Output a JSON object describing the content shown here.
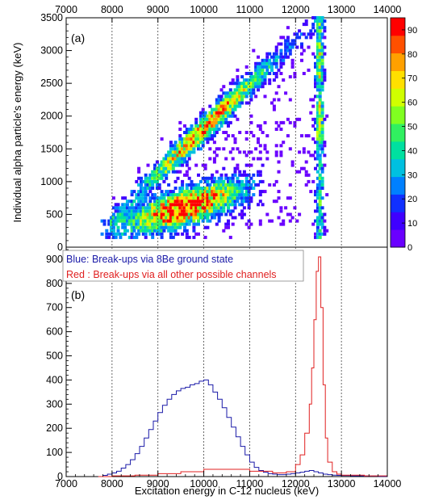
{
  "chart_data": [
    {
      "type": "heatmap",
      "panel_label": "(a)",
      "xlabel": "",
      "ylabel": "Individual alpha particle's energy (keV)",
      "xlim": [
        7000,
        14000
      ],
      "ylim": [
        0,
        3500
      ],
      "x_ticks": [
        "7000",
        "8000",
        "9000",
        "10000",
        "11000",
        "12000",
        "13000",
        "14000"
      ],
      "y_ticks": [
        "0",
        "500",
        "1000",
        "1500",
        "2000",
        "2500",
        "3000",
        "3500"
      ],
      "x_tick_position": "top",
      "gridlines_x": [
        8000,
        9000,
        10000,
        11000,
        12000,
        13000
      ],
      "colorbar": {
        "min": 0,
        "max": 95,
        "ticks": [
          "0",
          "10",
          "20",
          "30",
          "40",
          "50",
          "60",
          "70",
          "80",
          "90"
        ],
        "colors": [
          "#6a00ff",
          "#3f00ff",
          "#1030ff",
          "#0080ff",
          "#00c0e0",
          "#00e0a0",
          "#30f060",
          "#80ff20",
          "#d0ff00",
          "#ffe000",
          "#ffa000",
          "#ff5000",
          "#ff0000"
        ]
      },
      "features": [
        {
          "name": "diagonal band",
          "from": [
            8000,
            450
          ],
          "to": [
            12500,
            3500
          ]
        },
        {
          "name": "lower band",
          "from": [
            7700,
            200
          ],
          "to": [
            11300,
            950
          ]
        },
        {
          "name": "vertical band",
          "x": 12500,
          "y_range": [
            150,
            3500
          ]
        }
      ]
    },
    {
      "type": "line",
      "panel_label": "(b)",
      "xlabel": "Excitation energy in C-12 nucleus (keV)",
      "ylabel": "",
      "xlim": [
        7000,
        14000
      ],
      "ylim": [
        0,
        950
      ],
      "x_ticks": [
        "7000",
        "8000",
        "9000",
        "10000",
        "11000",
        "12000",
        "13000",
        "14000"
      ],
      "y_ticks": [
        "0",
        "100",
        "200",
        "300",
        "400",
        "500",
        "600",
        "700",
        "800",
        "900"
      ],
      "gridlines_x": [
        8000,
        9000,
        10000,
        11000,
        12000,
        13000
      ],
      "legend": [
        {
          "text": "Blue: Break-ups via 8Be ground state",
          "color": "#1a1aa8"
        },
        {
          "text": "Red : Break-ups via all other possible channels",
          "color": "#e02020"
        }
      ],
      "series": [
        {
          "color": "#1a1aa8",
          "x": [
            7700,
            7800,
            7900,
            8000,
            8100,
            8200,
            8300,
            8400,
            8500,
            8600,
            8700,
            8800,
            8900,
            9000,
            9100,
            9200,
            9300,
            9400,
            9500,
            9600,
            9700,
            9800,
            9900,
            10000,
            10100,
            10200,
            10300,
            10400,
            10500,
            10600,
            10700,
            10800,
            10900,
            11000,
            11100,
            11200,
            11300,
            11400,
            11500,
            11600,
            11700,
            11800,
            11900,
            12000,
            12100,
            12200,
            12300,
            12400,
            12500,
            12600,
            12700,
            12800,
            12900,
            13000,
            13100,
            13200,
            13300,
            13400,
            13500,
            13600,
            13700,
            13800,
            13900,
            14000
          ],
          "values": [
            0,
            5,
            10,
            15,
            22,
            35,
            50,
            70,
            95,
            125,
            160,
            195,
            230,
            265,
            295,
            320,
            340,
            355,
            365,
            370,
            380,
            385,
            395,
            400,
            380,
            350,
            320,
            285,
            245,
            205,
            165,
            125,
            90,
            60,
            38,
            25,
            18,
            12,
            10,
            8,
            8,
            10,
            12,
            15,
            18,
            22,
            25,
            20,
            15,
            10,
            8,
            6,
            5,
            4,
            4,
            3,
            3,
            3,
            2,
            2,
            2,
            1,
            1,
            0
          ]
        },
        {
          "color": "#e02020",
          "x": [
            7700,
            8000,
            8500,
            9000,
            9500,
            10000,
            10500,
            11000,
            11500,
            11800,
            12000,
            12100,
            12200,
            12300,
            12350,
            12400,
            12450,
            12500,
            12550,
            12600,
            12650,
            12700,
            12800,
            12900,
            13000,
            13500,
            14000
          ],
          "values": [
            0,
            3,
            6,
            12,
            20,
            30,
            30,
            22,
            15,
            20,
            50,
            90,
            180,
            300,
            450,
            650,
            850,
            910,
            700,
            380,
            160,
            60,
            20,
            10,
            6,
            3,
            0
          ]
        }
      ]
    }
  ]
}
